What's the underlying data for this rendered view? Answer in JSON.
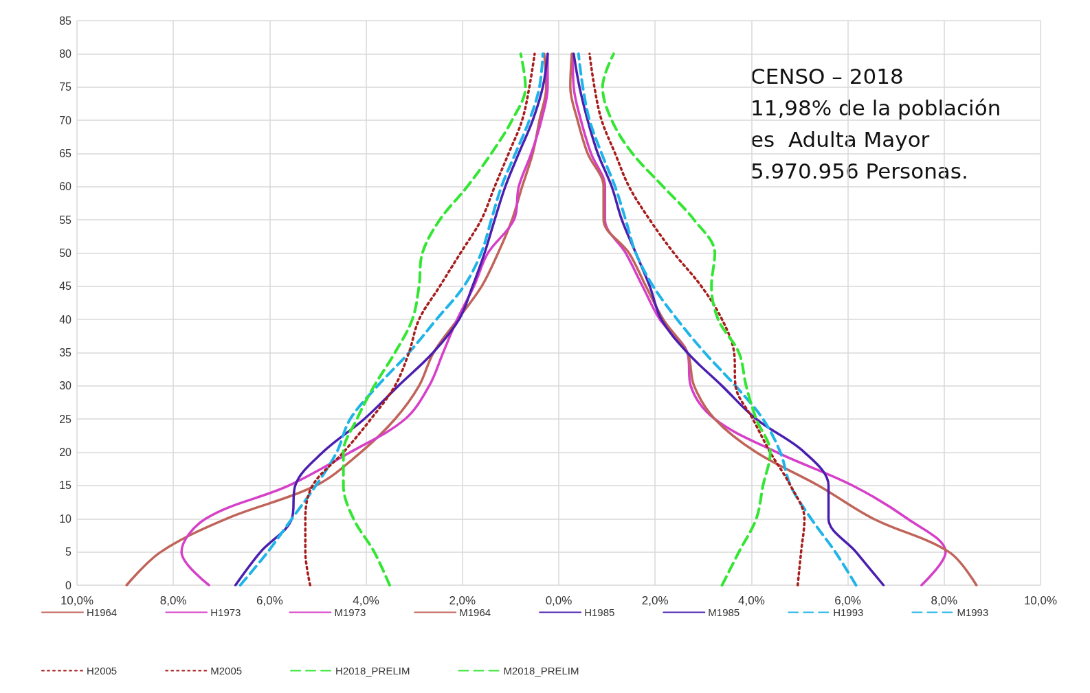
{
  "chart_data": {
    "type": "line",
    "xlim": [
      -10,
      10
    ],
    "ylim": [
      0,
      85
    ],
    "xticks": [
      {
        "value": -10,
        "label": "10,0%"
      },
      {
        "value": -8,
        "label": "8,0%"
      },
      {
        "value": -6,
        "label": "6,0%"
      },
      {
        "value": -4,
        "label": "4,0%"
      },
      {
        "value": -2,
        "label": "2,0%"
      },
      {
        "value": 0,
        "label": "0,0%"
      },
      {
        "value": 2,
        "label": "2,0%"
      },
      {
        "value": 4,
        "label": "4,0%"
      },
      {
        "value": 6,
        "label": "6,0%"
      },
      {
        "value": 8,
        "label": "8,0%"
      },
      {
        "value": 10,
        "label": "10,0%"
      }
    ],
    "yticks": [
      0,
      5,
      10,
      15,
      20,
      25,
      30,
      35,
      40,
      45,
      50,
      55,
      60,
      65,
      70,
      75,
      80,
      85
    ],
    "grid": true,
    "legend": "bottom",
    "marker": "none",
    "annotations": [
      "CENSO – 2018",
      "11,98% de la población",
      "es  Adulta Mayor",
      "5.970.956 Personas."
    ],
    "series": [
      {
        "name": "H1964",
        "color": "#c0645a",
        "line_style": "solid",
        "x": [
          -8.97,
          -8.26,
          -6.9,
          -5.04,
          -4.11,
          -3.4,
          -2.9,
          -2.6,
          -2.1,
          -1.6,
          -1.26,
          -0.97,
          -0.76,
          -0.54,
          -0.4,
          -0.26,
          -0.3
        ],
        "values": [
          0,
          5,
          10,
          15,
          20,
          25,
          30,
          35,
          40,
          45,
          50,
          55,
          60,
          65,
          70,
          75,
          80
        ]
      },
      {
        "name": "H1973",
        "color": "#d63fc8",
        "line_style": "solid",
        "x": [
          -7.26,
          -7.83,
          -7.33,
          -5.6,
          -4.33,
          -3.19,
          -2.69,
          -2.4,
          -2.11,
          -1.76,
          -1.47,
          -0.93,
          -0.83,
          -0.57,
          -0.36,
          -0.23,
          -0.23
        ],
        "values": [
          0,
          5,
          10,
          15,
          20,
          25,
          30,
          35,
          40,
          45,
          50,
          55,
          60,
          65,
          70,
          75,
          80
        ]
      },
      {
        "name": "M1973",
        "color": "#d63fc8",
        "line_style": "solid",
        "x": [
          7.53,
          8.03,
          7.24,
          6.1,
          4.53,
          3.24,
          2.74,
          2.67,
          2.1,
          1.74,
          1.39,
          0.96,
          0.96,
          0.67,
          0.46,
          0.31,
          0.29
        ],
        "values": [
          0,
          5,
          10,
          15,
          20,
          25,
          30,
          35,
          40,
          45,
          50,
          55,
          60,
          65,
          70,
          75,
          80
        ]
      },
      {
        "name": "M1964",
        "color": "#c0645a",
        "line_style": "solid",
        "x": [
          8.67,
          8.1,
          6.53,
          5.39,
          4.1,
          3.24,
          2.81,
          2.67,
          2.17,
          1.81,
          1.46,
          0.93,
          0.93,
          0.6,
          0.39,
          0.24,
          0.27
        ],
        "values": [
          0,
          5,
          10,
          15,
          20,
          25,
          30,
          35,
          40,
          45,
          50,
          55,
          60,
          65,
          70,
          75,
          80
        ]
      },
      {
        "name": "H1985",
        "color": "#4a1fb0",
        "line_style": "solid",
        "x": [
          -6.71,
          -6.19,
          -5.54,
          -5.47,
          -4.9,
          -4.04,
          -3.33,
          -2.61,
          -2.07,
          -1.79,
          -1.54,
          -1.33,
          -1.11,
          -0.83,
          -0.54,
          -0.33,
          -0.23
        ],
        "values": [
          0,
          5,
          10,
          15,
          20,
          25,
          30,
          35,
          40,
          45,
          50,
          55,
          60,
          65,
          70,
          75,
          80
        ]
      },
      {
        "name": "M1985",
        "color": "#4a1fb0",
        "line_style": "solid",
        "x": [
          6.74,
          6.17,
          5.6,
          5.6,
          5.1,
          4.1,
          3.39,
          2.67,
          2.13,
          1.89,
          1.6,
          1.31,
          1.1,
          0.81,
          0.6,
          0.43,
          0.31
        ],
        "values": [
          0,
          5,
          10,
          15,
          20,
          25,
          30,
          35,
          40,
          45,
          50,
          55,
          60,
          65,
          70,
          75,
          80
        ]
      },
      {
        "name": "H1993",
        "color": "#1fb4e8",
        "line_style": "dashed",
        "x": [
          -6.61,
          -6.04,
          -5.54,
          -5.04,
          -4.61,
          -4.33,
          -3.76,
          -3.11,
          -2.54,
          -1.97,
          -1.61,
          -1.4,
          -1.19,
          -0.9,
          -0.61,
          -0.4,
          -0.33
        ],
        "values": [
          0,
          5,
          10,
          15,
          20,
          25,
          30,
          35,
          40,
          45,
          50,
          55,
          60,
          65,
          70,
          75,
          80
        ]
      },
      {
        "name": "M1993",
        "color": "#1fb4e8",
        "line_style": "dashed",
        "x": [
          6.17,
          5.74,
          5.24,
          4.81,
          4.6,
          4.24,
          3.67,
          3.03,
          2.46,
          1.96,
          1.6,
          1.39,
          1.17,
          0.89,
          0.64,
          0.5,
          0.41
        ],
        "values": [
          0,
          5,
          10,
          15,
          20,
          25,
          30,
          35,
          40,
          45,
          50,
          55,
          60,
          65,
          70,
          75,
          80
        ]
      },
      {
        "name": "H2005",
        "color": "#a81c1c",
        "line_style": "dotted",
        "x": [
          -5.16,
          -5.26,
          -5.26,
          -5.11,
          -4.47,
          -3.9,
          -3.4,
          -3.11,
          -2.9,
          -2.47,
          -2.04,
          -1.61,
          -1.33,
          -1.04,
          -0.76,
          -0.61,
          -0.5
        ],
        "values": [
          0,
          5,
          10,
          15,
          20,
          25,
          30,
          35,
          40,
          45,
          50,
          55,
          60,
          65,
          70,
          75,
          80
        ]
      },
      {
        "name": "M2005",
        "color": "#a81c1c",
        "line_style": "dotted",
        "x": [
          4.96,
          5.03,
          5.1,
          4.81,
          4.39,
          4.03,
          3.67,
          3.64,
          3.39,
          2.96,
          2.39,
          1.89,
          1.46,
          1.17,
          0.89,
          0.74,
          0.64
        ],
        "values": [
          0,
          5,
          10,
          15,
          20,
          25,
          30,
          35,
          40,
          45,
          50,
          55,
          60,
          65,
          70,
          75,
          80
        ]
      },
      {
        "name": "H2018_PRELIM",
        "color": "#33e633",
        "line_style": "dashed",
        "x": [
          -3.51,
          -3.83,
          -4.26,
          -4.47,
          -4.47,
          -4.19,
          -3.83,
          -3.4,
          -3.04,
          -2.9,
          -2.83,
          -2.47,
          -1.9,
          -1.4,
          -0.97,
          -0.69,
          -0.79
        ],
        "values": [
          0,
          5,
          10,
          15,
          20,
          25,
          30,
          35,
          40,
          45,
          50,
          55,
          60,
          65,
          70,
          75,
          80
        ]
      },
      {
        "name": "M2018_PRELIM",
        "color": "#33e633",
        "line_style": "dashed",
        "x": [
          3.39,
          3.74,
          4.1,
          4.24,
          4.39,
          4.1,
          3.89,
          3.74,
          3.31,
          3.17,
          3.24,
          2.81,
          2.17,
          1.53,
          1.1,
          0.91,
          1.14
        ],
        "values": [
          0,
          5,
          10,
          15,
          20,
          25,
          30,
          35,
          40,
          45,
          50,
          55,
          60,
          65,
          70,
          75,
          80
        ]
      }
    ]
  }
}
